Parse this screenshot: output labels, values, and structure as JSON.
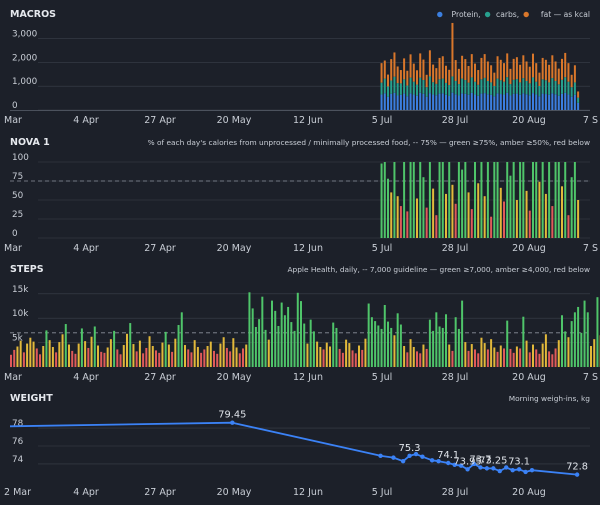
{
  "theme": {
    "background": "#1c2029",
    "grid": "#3a3f4a",
    "axis_text": "#c9ced6",
    "title_text": "#e6e9ee",
    "green": "#4fc56a",
    "amber": "#e2b93b",
    "red": "#e05a5a",
    "protein": "#3b7fe0",
    "carbs": "#27a08e",
    "fat": "#d9772b",
    "weight_line": "#3b82f6"
  },
  "x_ticks": [
    "Mar",
    "4 Apr",
    "27 Apr",
    "20 May",
    "12 Jun",
    "5 Jul",
    "28 Jul",
    "20 Aug",
    "7 S"
  ],
  "weight_x_ticks": [
    "2 Mar",
    "4 Apr",
    "27 Apr",
    "20 May",
    "12 Jun",
    "5 Jul",
    "28 Jul",
    "20 Aug"
  ],
  "panels": {
    "macros": {
      "title": "MACROS",
      "legend": [
        {
          "label": "Protein,",
          "color": "#3b7fe0"
        },
        {
          "label": "carbs,",
          "color": "#27a08e"
        },
        {
          "label": "fat — as kcal",
          "color": "#d9772b"
        }
      ]
    },
    "nova": {
      "title": "NOVA 1",
      "note": "% of each day's calories from unprocessed / minimally processed food, -- 75% — green ≥75%, amber ≥50%, red below"
    },
    "steps": {
      "title": "STEPS",
      "note": "Apple Health, daily, -- 7,000 guideline — green ≥7,000, amber ≥4,000, red below"
    },
    "weight": {
      "title": "WEIGHT",
      "note": "Morning weigh-ins, kg"
    }
  },
  "chart_data": [
    {
      "type": "bar",
      "title": "MACROS",
      "stacked": true,
      "x_range": [
        "2025-03-12",
        "2025-09-08"
      ],
      "y_ticks": [
        "0",
        "1,000",
        "2,000",
        "3,000"
      ],
      "ylim": [
        0,
        3700
      ],
      "legend_position": "top-right",
      "series": [
        {
          "name": "Protein",
          "color": "#3b7fe0",
          "start": "2025-07-05",
          "values": [
            650,
            700,
            560,
            680,
            720,
            610,
            640,
            690,
            580,
            700,
            650,
            600,
            720,
            680,
            560,
            710,
            650,
            620,
            690,
            700,
            640,
            590,
            730,
            660,
            610,
            700,
            680,
            640,
            720,
            650,
            600,
            690,
            710,
            660,
            640,
            580,
            700,
            670,
            650,
            720,
            610,
            680,
            690,
            640,
            700,
            660,
            620,
            710,
            650,
            580,
            690,
            670,
            640,
            700,
            660,
            600,
            680,
            720,
            650,
            560,
            640,
            300
          ]
        },
        {
          "name": "carbs",
          "color": "#27a08e",
          "start": "2025-07-05",
          "values": [
            500,
            620,
            430,
            560,
            680,
            520,
            480,
            600,
            450,
            660,
            540,
            470,
            640,
            580,
            400,
            700,
            520,
            480,
            600,
            620,
            500,
            460,
            680,
            560,
            480,
            620,
            580,
            510,
            650,
            540,
            460,
            600,
            640,
            560,
            520,
            430,
            620,
            580,
            540,
            660,
            480,
            590,
            610,
            520,
            640,
            560,
            500,
            660,
            540,
            430,
            600,
            580,
            520,
            640,
            560,
            480,
            590,
            660,
            540,
            400,
            520,
            220
          ]
        },
        {
          "name": "fat",
          "color": "#d9772b",
          "start": "2025-07-05",
          "values": [
            820,
            760,
            500,
            900,
            1020,
            700,
            560,
            880,
            620,
            980,
            760,
            600,
            1020,
            860,
            520,
            1100,
            740,
            660,
            900,
            940,
            720,
            640,
            2250,
            880,
            640,
            960,
            880,
            700,
            980,
            760,
            620,
            900,
            1000,
            820,
            720,
            560,
            940,
            860,
            780,
            1000,
            640,
            880,
            920,
            740,
            960,
            820,
            700,
            1000,
            780,
            560,
            900,
            860,
            740,
            960,
            820,
            660,
            880,
            1020,
            780,
            520,
            720,
            260
          ]
        }
      ]
    },
    {
      "type": "bar",
      "title": "NOVA 1",
      "x_range": [
        "2025-03-12",
        "2025-09-08"
      ],
      "y_ticks": [
        "0",
        "25",
        "50",
        "75",
        "100"
      ],
      "ylim": [
        0,
        100
      ],
      "reference_line": 75,
      "start": "2025-07-05",
      "values": [
        98,
        100,
        78,
        60,
        100,
        55,
        42,
        100,
        35,
        100,
        100,
        52,
        100,
        80,
        40,
        100,
        65,
        30,
        100,
        100,
        58,
        100,
        70,
        45,
        100,
        90,
        100,
        60,
        38,
        100,
        72,
        100,
        55,
        100,
        28,
        100,
        100,
        66,
        48,
        100,
        82,
        100,
        50,
        100,
        100,
        62,
        36,
        100,
        100,
        74,
        100,
        58,
        100,
        42,
        100,
        100,
        68,
        100,
        30,
        80,
        100,
        50
      ]
    },
    {
      "type": "bar",
      "title": "STEPS",
      "x_range": [
        "2025-03-12",
        "2025-09-08"
      ],
      "y_ticks": [
        "5k",
        "10k",
        "15k"
      ],
      "ylim": [
        0,
        17000
      ],
      "reference_line": 7000,
      "start": "2025-03-12",
      "values": [
        2500,
        3500,
        4200,
        5400,
        3000,
        4800,
        6000,
        5200,
        3800,
        2600,
        4300,
        7500,
        5500,
        4100,
        3000,
        5100,
        6700,
        8800,
        4600,
        3300,
        2700,
        4800,
        7900,
        5300,
        3900,
        6200,
        8300,
        4400,
        3100,
        2900,
        4000,
        5700,
        7400,
        3600,
        2600,
        4500,
        6800,
        9000,
        4700,
        3200,
        5400,
        2800,
        3900,
        6300,
        4300,
        3400,
        2900,
        5000,
        7200,
        4600,
        3100,
        5800,
        8600,
        11200,
        4500,
        3600,
        3000,
        5500,
        4100,
        2900,
        3600,
        4300,
        5200,
        3300,
        2700,
        4800,
        6100,
        3900,
        3200,
        5900,
        4000,
        2800,
        3800,
        4600,
        15300,
        12000,
        8200,
        9800,
        14400,
        7600,
        5600,
        13600,
        11500,
        8400,
        13200,
        10600,
        12300,
        9200,
        7400,
        15200,
        13500,
        8900,
        4800,
        9700,
        7300,
        5200,
        4100,
        3600,
        5000,
        4200,
        9100,
        8000,
        3700,
        2900,
        5600,
        4900,
        3400,
        2800,
        4400,
        3500,
        5800,
        13000,
        10200,
        9400,
        8500,
        7800,
        12700,
        9300,
        8000,
        6500,
        11000,
        8700,
        4300,
        3000,
        5700,
        4100,
        3200,
        2800,
        4600,
        3700,
        9700,
        7400,
        11200,
        8300,
        8000,
        10800,
        4600,
        3300,
        10200,
        7800,
        13600,
        5100,
        3300,
        4700,
        3600,
        2800,
        6000,
        4900,
        3600,
        5700,
        4000,
        3100,
        4400,
        3800,
        9500,
        3700,
        2900,
        4200,
        3800,
        10300,
        5400,
        3000,
        4600,
        3600,
        2700,
        4800,
        6700,
        3200,
        2600,
        3800,
        5500,
        10600,
        7300,
        6100,
        9400,
        11200,
        12300,
        7000,
        13600,
        11200,
        4300,
        5700,
        14300,
        6500,
        5400,
        2800
      ]
    },
    {
      "type": "line",
      "title": "WEIGHT",
      "ylabel": "kg",
      "y_ticks": [
        "74",
        "76",
        "78"
      ],
      "ylim": [
        72.2,
        79.8
      ],
      "x_range": [
        "2025-03-12",
        "2025-09-08"
      ],
      "points": [
        {
          "x": "2025-03-12",
          "y": 78.2
        },
        {
          "x": "2025-05-20",
          "y": 78.6,
          "label": "79.45"
        },
        {
          "x": "2025-07-05",
          "y": 74.9
        },
        {
          "x": "2025-07-09",
          "y": 74.7
        },
        {
          "x": "2025-07-12",
          "y": 74.3
        },
        {
          "x": "2025-07-14",
          "y": 74.9,
          "label": "75.3"
        },
        {
          "x": "2025-07-16",
          "y": 75.1
        },
        {
          "x": "2025-07-18",
          "y": 74.8
        },
        {
          "x": "2025-07-21",
          "y": 74.4
        },
        {
          "x": "2025-07-23",
          "y": 74.3
        },
        {
          "x": "2025-07-26",
          "y": 74.1,
          "label": "74.1"
        },
        {
          "x": "2025-07-28",
          "y": 73.9
        },
        {
          "x": "2025-07-30",
          "y": 73.8
        },
        {
          "x": "2025-08-01",
          "y": 73.4,
          "label": "73.95"
        },
        {
          "x": "2025-08-03",
          "y": 74.0
        },
        {
          "x": "2025-08-05",
          "y": 73.6,
          "label": "73.7"
        },
        {
          "x": "2025-08-07",
          "y": 73.5
        },
        {
          "x": "2025-08-09",
          "y": 73.5,
          "label": "73.25"
        },
        {
          "x": "2025-08-11",
          "y": 73.2
        },
        {
          "x": "2025-08-13",
          "y": 73.6
        },
        {
          "x": "2025-08-15",
          "y": 73.3
        },
        {
          "x": "2025-08-17",
          "y": 73.4,
          "label": "73.1"
        },
        {
          "x": "2025-08-19",
          "y": 73.1
        },
        {
          "x": "2025-08-21",
          "y": 73.3
        },
        {
          "x": "2025-09-04",
          "y": 72.8,
          "label": "72.8"
        }
      ]
    }
  ]
}
